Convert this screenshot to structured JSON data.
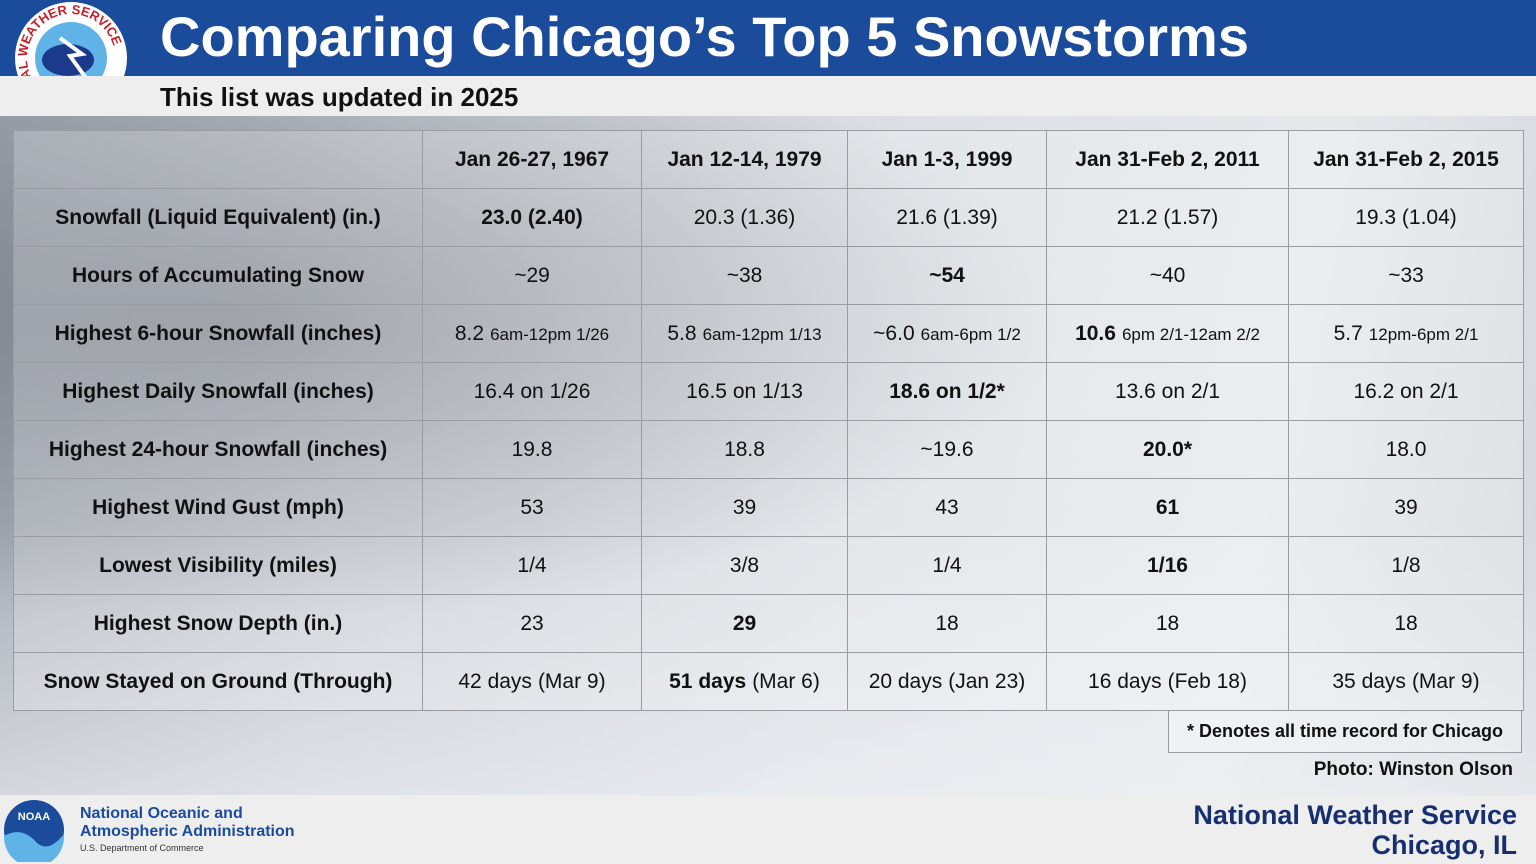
{
  "header": {
    "title": "Comparing Chicago’s Top 5 Snowstorms",
    "subtitle": "This list was updated in 2025",
    "logo_text": "NATIONAL WEATHER SERVICE"
  },
  "table": {
    "columns": [
      "Jan 26-27, 1967",
      "Jan 12-14, 1979",
      "Jan 1-3, 1999",
      "Jan 31-Feb 2, 2011",
      "Jan 31-Feb 2, 2015"
    ],
    "rows": [
      {
        "label": "Snowfall (Liquid Equivalent) (in.)",
        "cells": [
          {
            "main": "23.0 (2.40)",
            "bold": true
          },
          {
            "main": "20.3 (1.36)"
          },
          {
            "main": "21.6 (1.39)"
          },
          {
            "main": "21.2 (1.57)"
          },
          {
            "main": "19.3 (1.04)"
          }
        ]
      },
      {
        "label": "Hours of Accumulating Snow",
        "cells": [
          {
            "main": "~29"
          },
          {
            "main": "~38"
          },
          {
            "main": "~54",
            "bold": true
          },
          {
            "main": "~40"
          },
          {
            "main": "~33"
          }
        ]
      },
      {
        "label": "Highest 6-hour Snowfall (inches)",
        "cells": [
          {
            "main": "8.2",
            "rest": "6am-12pm 1/26",
            "small": true
          },
          {
            "main": "5.8",
            "rest": "6am-12pm 1/13",
            "small": true
          },
          {
            "main": "~6.0",
            "rest": "6am-6pm 1/2",
            "small": true
          },
          {
            "main": "10.6",
            "rest": "6pm 2/1-12am 2/2",
            "small": true,
            "bold": true
          },
          {
            "main": "5.7",
            "rest": "12pm-6pm 2/1",
            "small": true
          }
        ]
      },
      {
        "label": "Highest Daily Snowfall (inches)",
        "cells": [
          {
            "main": "16.4 on 1/26"
          },
          {
            "main": "16.5 on 1/13"
          },
          {
            "main": "18.6 on 1/2*",
            "bold": true
          },
          {
            "main": "13.6 on 2/1"
          },
          {
            "main": "16.2 on 2/1"
          }
        ]
      },
      {
        "label": "Highest 24-hour Snowfall (inches)",
        "cells": [
          {
            "main": "19.8"
          },
          {
            "main": "18.8"
          },
          {
            "main": "~19.6"
          },
          {
            "main": "20.0*",
            "bold": true
          },
          {
            "main": "18.0"
          }
        ]
      },
      {
        "label": "Highest Wind Gust (mph)",
        "cells": [
          {
            "main": "53"
          },
          {
            "main": "39"
          },
          {
            "main": "43"
          },
          {
            "main": "61",
            "bold": true
          },
          {
            "main": "39"
          }
        ]
      },
      {
        "label": "Lowest Visibility (miles)",
        "cells": [
          {
            "main": "1/4"
          },
          {
            "main": "3/8"
          },
          {
            "main": "1/4"
          },
          {
            "main": "1/16",
            "bold": true
          },
          {
            "main": "1/8"
          }
        ]
      },
      {
        "label": "Highest Snow Depth (in.)",
        "cells": [
          {
            "main": "23"
          },
          {
            "main": "29",
            "bold": true
          },
          {
            "main": "18"
          },
          {
            "main": "18"
          },
          {
            "main": "18"
          }
        ]
      },
      {
        "label": "Snow Stayed on Ground (Through)",
        "cells": [
          {
            "main": "42 days",
            "rest": "(Mar 9)"
          },
          {
            "main": "51 days",
            "rest": "(Mar 6)",
            "bold": true
          },
          {
            "main": "20 days",
            "rest": "(Jan 23)"
          },
          {
            "main": "16 days",
            "rest": "(Feb 18)"
          },
          {
            "main": "35 days",
            "rest": "(Mar 9)"
          }
        ]
      }
    ]
  },
  "footnote": "* Denotes all time record for Chicago",
  "photo_credit": "Photo: Winston Olson",
  "footer": {
    "noaa_logo": "NOAA",
    "noaa_line1": "National Oceanic and",
    "noaa_line2": "Atmospheric Administration",
    "noaa_line3": "U.S. Department of Commerce",
    "office_line1": "National Weather Service",
    "office_line2": "Chicago, IL"
  }
}
